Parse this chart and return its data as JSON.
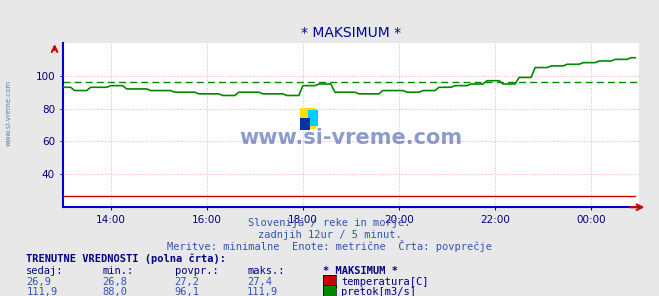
{
  "title": "* MAKSIMUM *",
  "title_color": "#000099",
  "bg_color": "#e8e8e8",
  "plot_bg_color": "#ffffff",
  "grid_color": "#ffaaaa",
  "axis_color": "#0000cc",
  "xlabel": "",
  "ylabel": "",
  "xlim": [
    0,
    144
  ],
  "ylim": [
    20,
    120
  ],
  "yticks": [
    40,
    60,
    80,
    100
  ],
  "xtick_labels": [
    "14:00",
    "16:00",
    "18:00",
    "20:00",
    "22:00",
    "00:00"
  ],
  "xtick_positions": [
    12,
    36,
    60,
    84,
    108,
    132
  ],
  "temp_color": "#cc0000",
  "flow_color": "#008800",
  "flow_avg": 96.1,
  "temp_avg": 27.2,
  "watermark": "www.si-vreme.com",
  "watermark_color": "#1a3a9a",
  "logo_yellow": "#FFE000",
  "logo_cyan": "#00CCFF",
  "logo_blue": "#0033AA",
  "footer_line1": "Slovenija / reke in morje.",
  "footer_line2": "zadnjih 12ur / 5 minut.",
  "footer_line3": "Meritve: minimalne  Enote: metrične  Črta: povprečje",
  "table_header": "TRENUTNE VREDNOSTI (polna črta):",
  "col_headers": [
    "sedaj:",
    "min.:",
    "povpr.:",
    "maks.:",
    "* MAKSIMUM *"
  ],
  "row1_vals": [
    "26,9",
    "26,8",
    "27,2",
    "27,4"
  ],
  "row1_label": "temperatura[C]",
  "row2_vals": [
    "111,9",
    "88,0",
    "96,1",
    "111,9"
  ],
  "row2_label": "pretok[m3/s]",
  "text_color": "#3355aa",
  "header_color": "#000080",
  "side_watermark": "www.si-vreme.com"
}
